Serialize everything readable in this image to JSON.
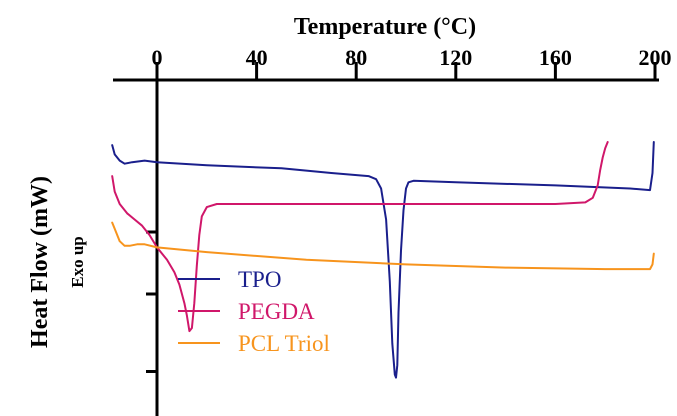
{
  "chart_data": {
    "type": "line",
    "title": "",
    "xlabel": "Temperature (°C)",
    "ylabel": "Heat Flow (mW)",
    "ylabel_sub": "Exo up",
    "x_ticks": [
      0,
      40,
      80,
      120,
      160,
      200
    ],
    "xlim": [
      -19,
      200
    ],
    "ylim": [
      0,
      100
    ],
    "x_axis_position": "top",
    "legend_position": "lower-left",
    "grid": false,
    "series": [
      {
        "name": "TPO",
        "color": "#1a1f8c",
        "points": [
          [
            -18,
            79
          ],
          [
            -17,
            76
          ],
          [
            -15,
            74
          ],
          [
            -13,
            73
          ],
          [
            -10,
            73.5
          ],
          [
            -5,
            74
          ],
          [
            0,
            73.5
          ],
          [
            20,
            72.5
          ],
          [
            50,
            71.5
          ],
          [
            70,
            70
          ],
          [
            85,
            69
          ],
          [
            88,
            68
          ],
          [
            90,
            65
          ],
          [
            92,
            55
          ],
          [
            93.5,
            35
          ],
          [
            94.5,
            15
          ],
          [
            95.5,
            5
          ],
          [
            96,
            4
          ],
          [
            96.5,
            8
          ],
          [
            97,
            25
          ],
          [
            98,
            45
          ],
          [
            99,
            58
          ],
          [
            100,
            65
          ],
          [
            101,
            67
          ],
          [
            103,
            67.5
          ],
          [
            120,
            67
          ],
          [
            160,
            66
          ],
          [
            190,
            65
          ],
          [
            198,
            64.5
          ],
          [
            199,
            70
          ],
          [
            199.5,
            80
          ]
        ]
      },
      {
        "name": "PEGDA",
        "color": "#d0176a",
        "points": [
          [
            -18,
            69
          ],
          [
            -17,
            64
          ],
          [
            -15,
            60
          ],
          [
            -12,
            57
          ],
          [
            -9,
            55
          ],
          [
            -6,
            53
          ],
          [
            -3,
            50
          ],
          [
            0,
            46
          ],
          [
            4,
            42
          ],
          [
            7,
            38
          ],
          [
            9,
            34
          ],
          [
            11,
            28
          ],
          [
            12,
            24
          ],
          [
            13,
            19
          ],
          [
            14,
            20
          ],
          [
            15,
            28
          ],
          [
            16,
            40
          ],
          [
            17,
            50
          ],
          [
            18,
            56
          ],
          [
            20,
            59
          ],
          [
            24,
            60
          ],
          [
            40,
            60
          ],
          [
            80,
            60
          ],
          [
            120,
            60
          ],
          [
            160,
            60
          ],
          [
            172,
            60.5
          ],
          [
            175,
            62
          ],
          [
            177,
            66
          ],
          [
            178,
            71
          ],
          [
            179,
            75
          ],
          [
            180,
            78
          ],
          [
            181,
            80
          ]
        ]
      },
      {
        "name": "PCL Triol",
        "color": "#f7941d",
        "points": [
          [
            -18,
            54
          ],
          [
            -17,
            52
          ],
          [
            -16,
            50
          ],
          [
            -15,
            48
          ],
          [
            -13,
            46.5
          ],
          [
            -11,
            46.5
          ],
          [
            -8,
            47
          ],
          [
            -5,
            47
          ],
          [
            0,
            46
          ],
          [
            20,
            44.5
          ],
          [
            60,
            42
          ],
          [
            100,
            40.5
          ],
          [
            140,
            39.5
          ],
          [
            180,
            39
          ],
          [
            198,
            39
          ],
          [
            199,
            40.5
          ],
          [
            199.5,
            44
          ]
        ]
      }
    ]
  }
}
